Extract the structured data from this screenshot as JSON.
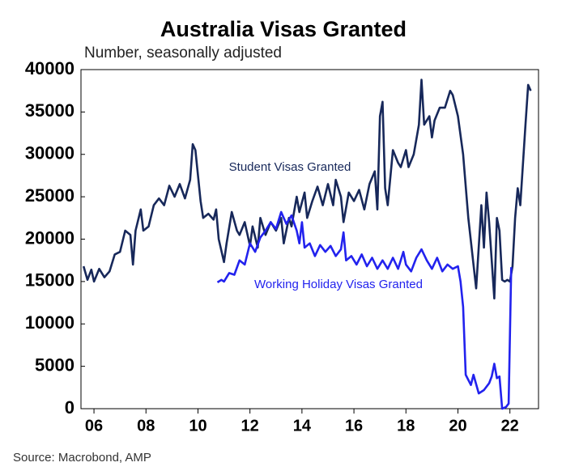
{
  "chart_data": {
    "type": "line",
    "title": "Australia Visas Granted",
    "subtitle": "Number, seasonally adjusted",
    "source": "Source: Macrobond, AMP",
    "xlim": [
      2005.5,
      2023.1
    ],
    "ylim": [
      0,
      40000
    ],
    "yticks": [
      0,
      5000,
      10000,
      15000,
      20000,
      25000,
      30000,
      35000,
      40000
    ],
    "xticks": [
      {
        "value": 2006,
        "label": "06"
      },
      {
        "value": 2008,
        "label": "08"
      },
      {
        "value": 2010,
        "label": "10"
      },
      {
        "value": 2012,
        "label": "12"
      },
      {
        "value": 2014,
        "label": "14"
      },
      {
        "value": 2016,
        "label": "16"
      },
      {
        "value": 2018,
        "label": "18"
      },
      {
        "value": 2020,
        "label": "20"
      },
      {
        "value": 2022,
        "label": "22"
      }
    ],
    "grid": false,
    "series": [
      {
        "name": "Student Visas Granted",
        "color": "#17285a",
        "x": [
          2005.6,
          2005.75,
          2005.9,
          2006.0,
          2006.2,
          2006.4,
          2006.6,
          2006.8,
          2007.0,
          2007.2,
          2007.4,
          2007.5,
          2007.6,
          2007.8,
          2007.9,
          2008.1,
          2008.3,
          2008.5,
          2008.7,
          2008.9,
          2009.1,
          2009.3,
          2009.5,
          2009.7,
          2009.8,
          2009.9,
          2010.1,
          2010.2,
          2010.4,
          2010.6,
          2010.7,
          2010.8,
          2011.0,
          2011.1,
          2011.3,
          2011.5,
          2011.6,
          2011.8,
          2012.0,
          2012.1,
          2012.3,
          2012.4,
          2012.6,
          2012.8,
          2013.0,
          2013.2,
          2013.3,
          2013.5,
          2013.6,
          2013.8,
          2013.9,
          2014.1,
          2014.2,
          2014.4,
          2014.6,
          2014.8,
          2015.0,
          2015.2,
          2015.3,
          2015.5,
          2015.6,
          2015.8,
          2016.0,
          2016.2,
          2016.4,
          2016.6,
          2016.8,
          2016.9,
          2017.0,
          2017.1,
          2017.2,
          2017.3,
          2017.5,
          2017.7,
          2017.8,
          2018.0,
          2018.1,
          2018.3,
          2018.5,
          2018.6,
          2018.7,
          2018.9,
          2019.0,
          2019.1,
          2019.3,
          2019.5,
          2019.7,
          2019.8,
          2020.0,
          2020.2,
          2020.4,
          2020.6,
          2020.7,
          2020.9,
          2021.0,
          2021.1,
          2021.2,
          2021.4,
          2021.5,
          2021.6,
          2021.7,
          2021.8,
          2021.9,
          2022.0,
          2022.1,
          2022.2,
          2022.3,
          2022.4,
          2022.6,
          2022.7,
          2022.8
        ],
        "values": [
          16800,
          15200,
          16400,
          15000,
          16500,
          15500,
          16200,
          18200,
          18500,
          21000,
          20500,
          17000,
          21000,
          23500,
          21000,
          21500,
          24000,
          24800,
          24000,
          26300,
          25000,
          26500,
          24800,
          27000,
          31200,
          30500,
          24500,
          22500,
          23000,
          22300,
          23500,
          20000,
          17300,
          19500,
          23200,
          21000,
          20500,
          22000,
          19200,
          21500,
          19000,
          22500,
          20500,
          22000,
          21000,
          22500,
          19500,
          22500,
          21500,
          25000,
          23200,
          25500,
          22500,
          24500,
          26200,
          24000,
          26500,
          24000,
          27000,
          25000,
          22000,
          25500,
          24500,
          25800,
          23500,
          26500,
          28000,
          23500,
          34500,
          36200,
          26000,
          24000,
          30500,
          29000,
          28500,
          30500,
          28500,
          30000,
          33500,
          38800,
          33500,
          34500,
          32000,
          34000,
          35500,
          35500,
          37500,
          37000,
          34500,
          30000,
          22500,
          17000,
          14200,
          24000,
          19000,
          25500,
          22000,
          13000,
          22500,
          21000,
          15200,
          15000,
          15200,
          15000,
          16800,
          22500,
          26000,
          24000,
          33500,
          38200,
          37500
        ]
      },
      {
        "name": "Working Holiday Visas Granted",
        "color": "#2222ee",
        "x": [
          2010.75,
          2010.9,
          2011.0,
          2011.2,
          2011.4,
          2011.6,
          2011.8,
          2012.0,
          2012.2,
          2012.4,
          2012.6,
          2012.8,
          2013.0,
          2013.2,
          2013.4,
          2013.6,
          2013.8,
          2013.9,
          2014.0,
          2014.1,
          2014.3,
          2014.5,
          2014.7,
          2014.9,
          2015.1,
          2015.3,
          2015.5,
          2015.6,
          2015.7,
          2015.9,
          2016.1,
          2016.3,
          2016.5,
          2016.7,
          2016.9,
          2017.1,
          2017.3,
          2017.5,
          2017.7,
          2017.9,
          2018.0,
          2018.2,
          2018.4,
          2018.6,
          2018.8,
          2019.0,
          2019.2,
          2019.4,
          2019.6,
          2019.8,
          2020.0,
          2020.1,
          2020.2,
          2020.3,
          2020.5,
          2020.6,
          2020.8,
          2021.0,
          2021.2,
          2021.3,
          2021.4,
          2021.5,
          2021.6,
          2021.7,
          2021.85,
          2021.95,
          2022.05
        ],
        "values": [
          14900,
          15200,
          15000,
          16000,
          15800,
          17500,
          17000,
          19500,
          18500,
          20200,
          21000,
          22000,
          21200,
          23200,
          21800,
          22800,
          21000,
          19500,
          22000,
          19000,
          19500,
          18000,
          19300,
          18500,
          19200,
          18000,
          18800,
          20800,
          17500,
          18000,
          17000,
          18200,
          16800,
          17800,
          16500,
          17500,
          16500,
          17800,
          16500,
          18500,
          17000,
          16200,
          17800,
          18800,
          17500,
          16500,
          17800,
          16200,
          17000,
          16500,
          16800,
          15000,
          12000,
          4000,
          2800,
          4000,
          1800,
          2200,
          3000,
          3800,
          5300,
          3600,
          3800,
          0,
          200,
          600,
          16700
        ]
      }
    ]
  }
}
